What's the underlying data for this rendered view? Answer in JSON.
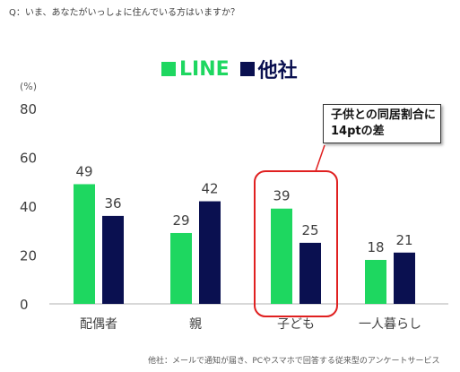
{
  "question": "Q：いま、あなたがいっしょに住んでいる方はいますか？",
  "unit": "(%)",
  "callout": {
    "line1": "子供との同居割合に",
    "line2": "14ptの差"
  },
  "source_note": "他社：メールで通知が届き、PCやスマホで回答する従来型のアンケートサービス",
  "colors": {
    "line": "#1ed760",
    "other": "#0a1050",
    "highlight": "#e02020",
    "axis": "#b0b0b0",
    "text": "#404040"
  },
  "chart_data": {
    "type": "bar",
    "categories": [
      "配偶者",
      "親",
      "子ども",
      "一人暮らし"
    ],
    "series": [
      {
        "name": "LINE",
        "values": [
          49,
          29,
          39,
          18
        ]
      },
      {
        "name": "他社",
        "values": [
          36,
          42,
          25,
          21
        ]
      }
    ],
    "ylim": [
      0,
      80
    ],
    "yticks": [
      0,
      20,
      40,
      60,
      80
    ],
    "ylabel": "(%)",
    "legend": "top-center",
    "grid": false,
    "highlight_category": "子ども"
  }
}
